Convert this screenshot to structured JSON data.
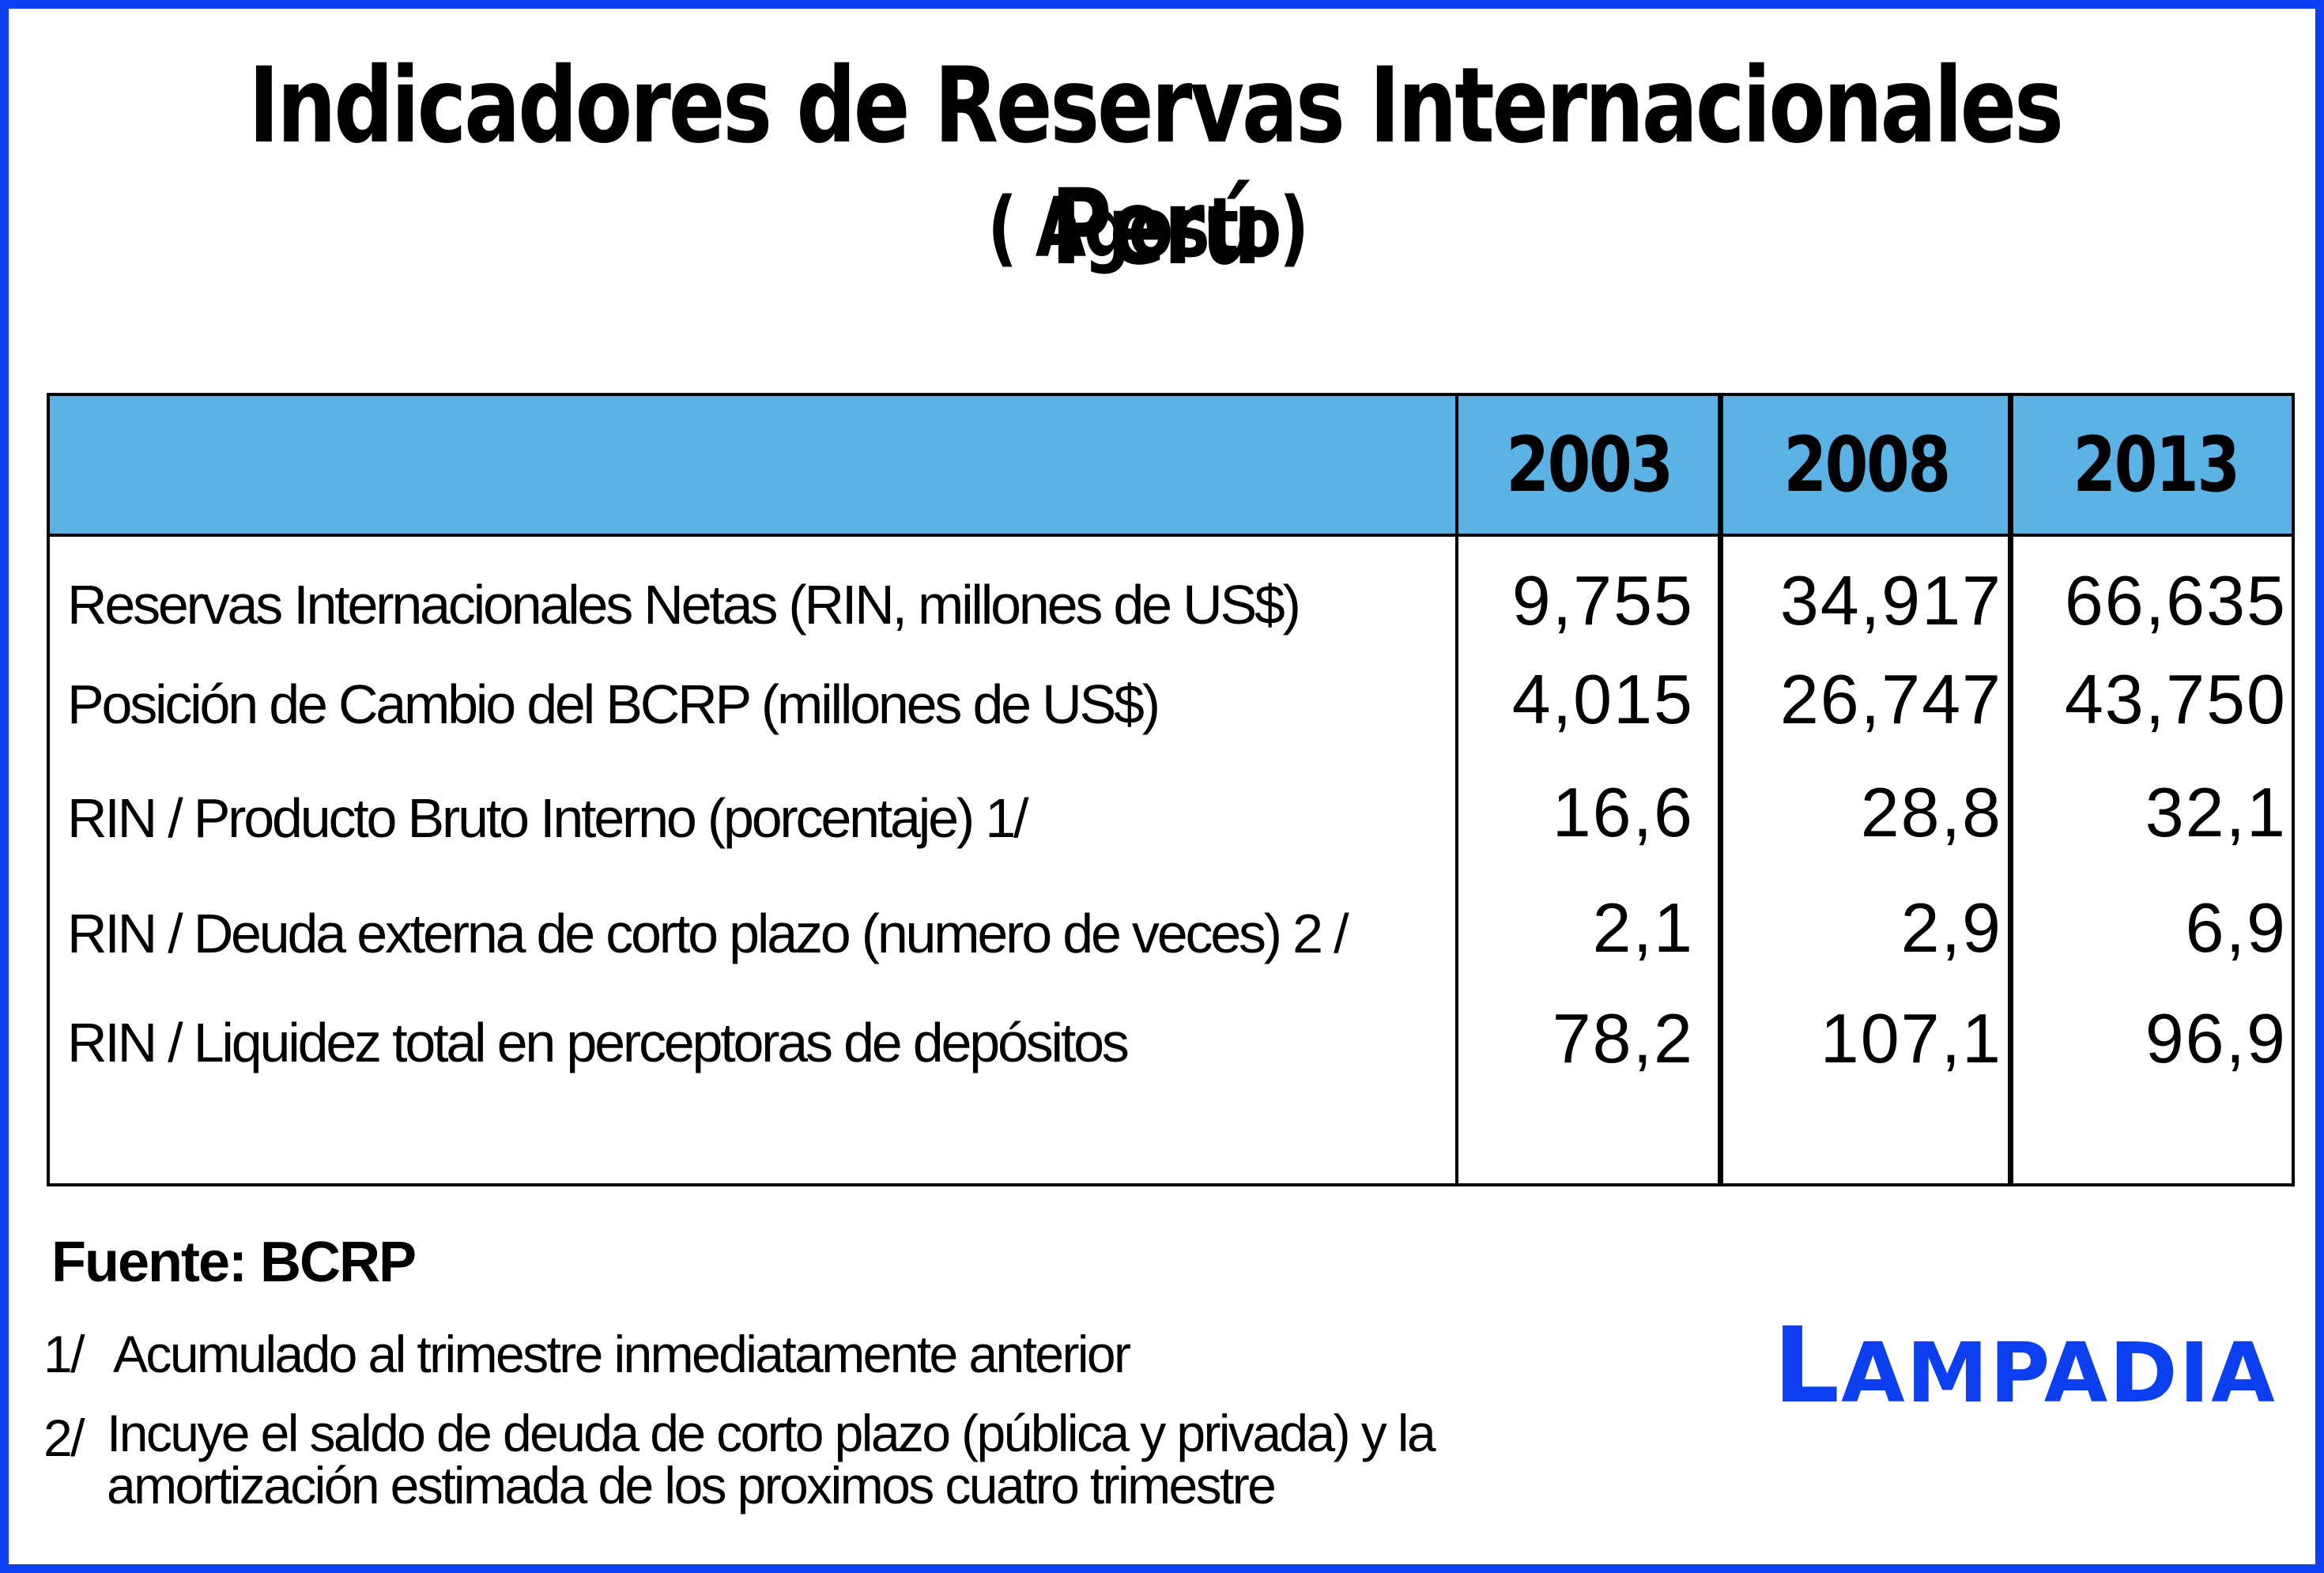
{
  "title": "Indicadores de Reservas Internacionales Perú",
  "subtitle": "( Agosto)",
  "table": {
    "years": [
      "2003",
      "2008",
      "2013"
    ],
    "rows": [
      {
        "label": "Reservas Internacionales Netas (RIN, millones de US$)",
        "values": [
          "9,755",
          "34,917",
          "66,635"
        ]
      },
      {
        "label": "Posición de Cambio del BCRP (millones de US$)",
        "values": [
          "4,015",
          "26,747",
          "43,750"
        ]
      },
      {
        "label": "RIN / Producto Bruto Interno (porcentaje) 1/",
        "values": [
          "16,6",
          "28,8",
          "32,1"
        ]
      },
      {
        "label": "RIN / Deuda externa de corto plazo (numero de veces) 2 /",
        "values": [
          "2,1",
          "2,9",
          "6,9"
        ]
      },
      {
        "label": "RIN / Liquidez total en perceptoras de depósitos",
        "values": [
          "78,2",
          "107,1",
          "96,9"
        ]
      }
    ]
  },
  "source": "Fuente: BCRP",
  "notes": {
    "n1_mark": "1/",
    "n1_text": "Acumulado al trimestre inmediatamente anterior",
    "n2_mark": "2/",
    "n2_line1": "Incuye el saldo de deuda de corto plazo (pública y privada) y la",
    "n2_line2": "amortización estimada de los proximos cuatro trimestre"
  },
  "logo": {
    "first": "L",
    "rest": "AMPADIA"
  },
  "colors": {
    "border": "#0b3ff0",
    "header_bg": "#5bb2e5",
    "logo": "#0b3ff0"
  }
}
